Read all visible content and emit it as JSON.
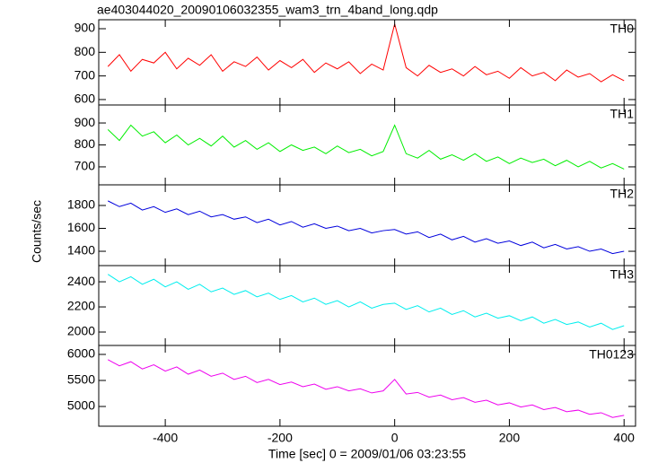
{
  "chart_data": [
    {
      "type": "line",
      "title": "ae403044020_20090106032355_wam3_trn_4band_long.qdp",
      "label": "TH0",
      "color": "#ff0000",
      "x": [
        -500,
        -480,
        -460,
        -440,
        -420,
        -400,
        -380,
        -360,
        -340,
        -320,
        -300,
        -280,
        -260,
        -240,
        -220,
        -200,
        -180,
        -160,
        -140,
        -120,
        -100,
        -80,
        -60,
        -40,
        -20,
        0,
        20,
        40,
        60,
        80,
        100,
        120,
        140,
        160,
        180,
        200,
        220,
        240,
        260,
        280,
        300,
        320,
        340,
        360,
        380,
        400
      ],
      "values": [
        740,
        790,
        720,
        770,
        755,
        800,
        730,
        775,
        745,
        790,
        720,
        760,
        740,
        780,
        725,
        765,
        735,
        770,
        715,
        755,
        730,
        760,
        710,
        750,
        725,
        920,
        735,
        700,
        745,
        715,
        730,
        700,
        740,
        705,
        720,
        690,
        735,
        700,
        715,
        680,
        725,
        695,
        710,
        675,
        705,
        680
      ],
      "xlim": [
        -516,
        420
      ],
      "ylim": [
        577,
        938
      ],
      "yticks": [
        600,
        700,
        800,
        900
      ]
    },
    {
      "type": "line",
      "label": "TH1",
      "color": "#00ee00",
      "x": [
        -500,
        -480,
        -460,
        -440,
        -420,
        -400,
        -380,
        -360,
        -340,
        -320,
        -300,
        -280,
        -260,
        -240,
        -220,
        -200,
        -180,
        -160,
        -140,
        -120,
        -100,
        -80,
        -60,
        -40,
        -20,
        0,
        20,
        40,
        60,
        80,
        100,
        120,
        140,
        160,
        180,
        200,
        220,
        240,
        260,
        280,
        300,
        320,
        340,
        360,
        380,
        400
      ],
      "values": [
        870,
        820,
        890,
        840,
        860,
        810,
        845,
        800,
        830,
        795,
        840,
        790,
        820,
        780,
        810,
        770,
        800,
        775,
        790,
        760,
        795,
        765,
        780,
        750,
        770,
        890,
        760,
        740,
        775,
        735,
        755,
        730,
        760,
        725,
        745,
        715,
        740,
        720,
        735,
        705,
        730,
        700,
        725,
        695,
        715,
        690
      ],
      "xlim": [
        -516,
        420
      ],
      "ylim": [
        618,
        982
      ],
      "yticks": [
        700,
        800,
        900
      ]
    },
    {
      "type": "line",
      "label": "TH2",
      "color": "#0000dd",
      "y_label": "Counts/sec",
      "x": [
        -500,
        -480,
        -460,
        -440,
        -420,
        -400,
        -380,
        -360,
        -340,
        -320,
        -300,
        -280,
        -260,
        -240,
        -220,
        -200,
        -180,
        -160,
        -140,
        -120,
        -100,
        -80,
        -60,
        -40,
        -20,
        0,
        20,
        40,
        60,
        80,
        100,
        120,
        140,
        160,
        180,
        200,
        220,
        240,
        260,
        280,
        300,
        320,
        340,
        360,
        380,
        400
      ],
      "values": [
        1840,
        1790,
        1820,
        1760,
        1790,
        1740,
        1770,
        1720,
        1750,
        1700,
        1720,
        1680,
        1700,
        1650,
        1680,
        1630,
        1660,
        1610,
        1640,
        1600,
        1620,
        1580,
        1600,
        1560,
        1580,
        1590,
        1550,
        1570,
        1520,
        1550,
        1500,
        1530,
        1480,
        1510,
        1470,
        1490,
        1450,
        1480,
        1430,
        1460,
        1420,
        1440,
        1400,
        1420,
        1380,
        1400
      ],
      "xlim": [
        -516,
        420
      ],
      "ylim": [
        1275,
        1980
      ],
      "yticks": [
        1400,
        1600,
        1800
      ]
    },
    {
      "type": "line",
      "label": "TH3",
      "color": "#00eeee",
      "x": [
        -500,
        -480,
        -460,
        -440,
        -420,
        -400,
        -380,
        -360,
        -340,
        -320,
        -300,
        -280,
        -260,
        -240,
        -220,
        -200,
        -180,
        -160,
        -140,
        -120,
        -100,
        -80,
        -60,
        -40,
        -20,
        0,
        20,
        40,
        60,
        80,
        100,
        120,
        140,
        160,
        180,
        200,
        220,
        240,
        260,
        280,
        300,
        320,
        340,
        360,
        380,
        400
      ],
      "values": [
        2460,
        2400,
        2440,
        2380,
        2420,
        2360,
        2400,
        2340,
        2380,
        2320,
        2350,
        2300,
        2330,
        2280,
        2310,
        2260,
        2290,
        2240,
        2270,
        2220,
        2250,
        2200,
        2240,
        2190,
        2220,
        2230,
        2180,
        2210,
        2160,
        2190,
        2140,
        2170,
        2120,
        2150,
        2110,
        2130,
        2090,
        2120,
        2070,
        2100,
        2060,
        2080,
        2040,
        2070,
        2020,
        2050
      ],
      "xlim": [
        -516,
        420
      ],
      "ylim": [
        1893,
        2529
      ],
      "yticks": [
        2000,
        2200,
        2400
      ]
    },
    {
      "type": "line",
      "label": "TH0123",
      "color": "#ee00ee",
      "x_label": "Time [sec] 0 = 2009/01/06 03:23:55",
      "x": [
        -500,
        -480,
        -460,
        -440,
        -420,
        -400,
        -380,
        -360,
        -340,
        -320,
        -300,
        -280,
        -260,
        -240,
        -220,
        -200,
        -180,
        -160,
        -140,
        -120,
        -100,
        -80,
        -60,
        -40,
        -20,
        0,
        20,
        40,
        60,
        80,
        100,
        120,
        140,
        160,
        180,
        200,
        220,
        240,
        260,
        280,
        300,
        320,
        340,
        360,
        380,
        400
      ],
      "values": [
        5900,
        5780,
        5860,
        5720,
        5800,
        5680,
        5760,
        5620,
        5700,
        5580,
        5640,
        5520,
        5580,
        5460,
        5520,
        5420,
        5470,
        5380,
        5430,
        5330,
        5380,
        5300,
        5340,
        5260,
        5300,
        5520,
        5240,
        5270,
        5180,
        5220,
        5130,
        5170,
        5080,
        5120,
        5030,
        5070,
        4990,
        5030,
        4940,
        4980,
        4900,
        4930,
        4850,
        4880,
        4790,
        4830
      ],
      "xlim": [
        -516,
        420
      ],
      "ylim": [
        4621,
        6172
      ],
      "yticks": [
        5000,
        5500,
        6000
      ],
      "xticks": [
        -400,
        -200,
        0,
        200,
        400
      ]
    }
  ]
}
